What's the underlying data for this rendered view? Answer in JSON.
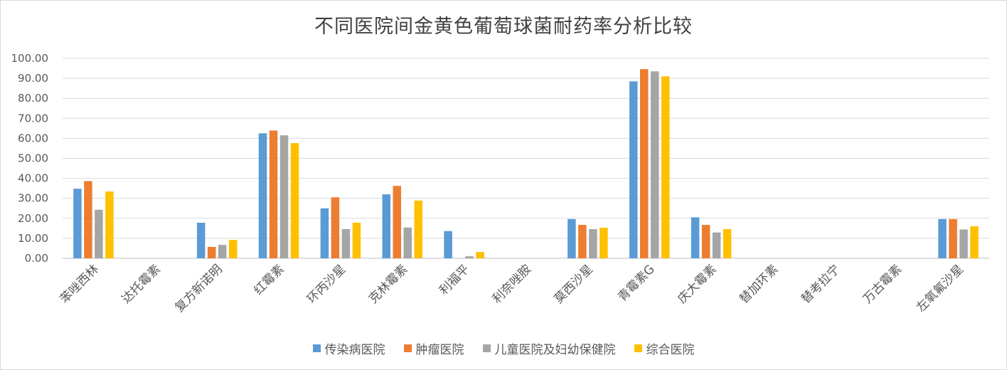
{
  "chart_data": {
    "type": "bar",
    "title": "不同医院间金黄色葡萄球菌耐药率分析比较",
    "categories": [
      "苯唑西林",
      "达托霉素",
      "复方新诺明",
      "红霉素",
      "环丙沙星",
      "克林霉素",
      "利福平",
      "利奈唑胺",
      "莫西沙星",
      "青霉素G",
      "庆大霉素",
      "替加环素",
      "替考拉宁",
      "万古霉素",
      "左氧氟沙星"
    ],
    "series": [
      {
        "name": "传染病医院",
        "color": "#5b9bd5",
        "values": [
          34.8,
          0,
          17.8,
          62.5,
          25.0,
          32.0,
          13.6,
          0,
          19.6,
          88.5,
          20.5,
          0,
          0,
          0,
          19.6
        ]
      },
      {
        "name": "肿瘤医院",
        "color": "#ed7d31",
        "values": [
          38.6,
          0,
          5.7,
          63.9,
          30.5,
          36.2,
          0,
          0,
          16.7,
          94.6,
          16.7,
          0,
          0,
          0,
          19.6
        ]
      },
      {
        "name": "儿童医院及妇幼保健院",
        "color": "#a5a5a5",
        "values": [
          24.3,
          0,
          6.7,
          61.5,
          14.6,
          15.4,
          1.0,
          0,
          14.6,
          93.5,
          12.9,
          0,
          0,
          0,
          14.4
        ]
      },
      {
        "name": "综合医院",
        "color": "#ffc000",
        "values": [
          33.4,
          0,
          9.2,
          57.6,
          17.8,
          28.9,
          3.2,
          0,
          15.3,
          91.0,
          14.6,
          0,
          0,
          0,
          16.0
        ]
      }
    ],
    "ylim": [
      0,
      100
    ],
    "yticks": [
      "0.00",
      "10.00",
      "20.00",
      "30.00",
      "40.00",
      "50.00",
      "60.00",
      "70.00",
      "80.00",
      "90.00",
      "100.00"
    ],
    "grid": true,
    "legend_position": "bottom"
  }
}
